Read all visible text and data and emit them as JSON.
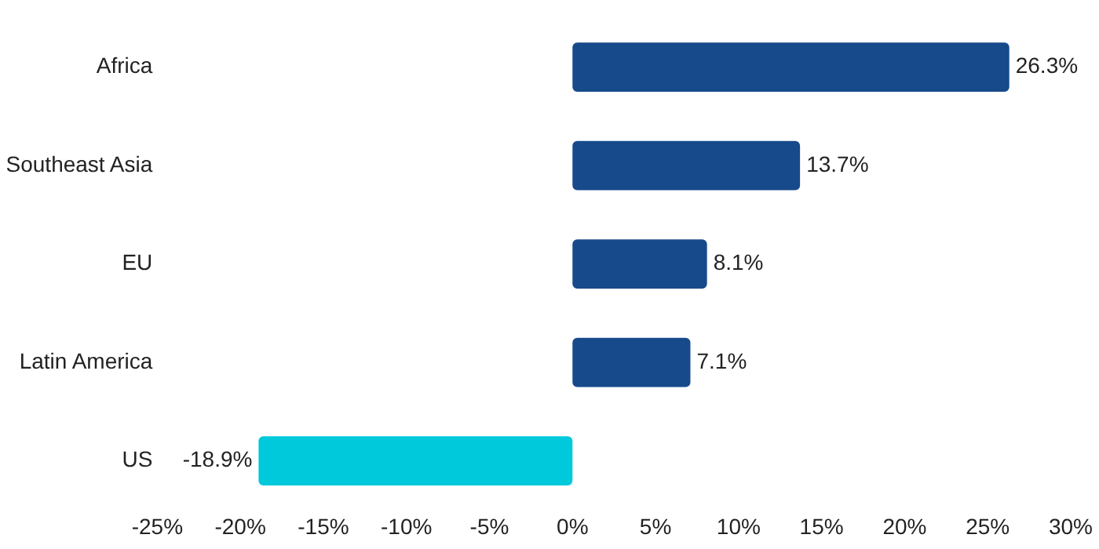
{
  "chart_data": {
    "type": "bar",
    "orientation": "horizontal",
    "categories": [
      "Africa",
      "Southeast Asia",
      "EU",
      "Latin America",
      "US"
    ],
    "values": [
      26.3,
      13.7,
      8.1,
      7.1,
      -18.9
    ],
    "colors": [
      "#174a8b",
      "#174a8b",
      "#174a8b",
      "#174a8b",
      "#00c9dc"
    ],
    "value_labels": [
      "26.3%",
      "13.7%",
      "8.1%",
      "7.1%",
      "-18.9%"
    ],
    "xlim": [
      -25,
      30
    ],
    "xticks": [
      {
        "value": -25,
        "label": "-25%"
      },
      {
        "value": -20,
        "label": "-20%"
      },
      {
        "value": -15,
        "label": "-15%"
      },
      {
        "value": -10,
        "label": "-10%"
      },
      {
        "value": -5,
        "label": "-5%"
      },
      {
        "value": 0,
        "label": "0%"
      },
      {
        "value": 5,
        "label": "5%"
      },
      {
        "value": 10,
        "label": "10%"
      },
      {
        "value": 15,
        "label": "15%"
      },
      {
        "value": 20,
        "label": "20%"
      },
      {
        "value": 25,
        "label": "25%"
      },
      {
        "value": 30,
        "label": "30%"
      }
    ],
    "grid": false,
    "legend": false
  }
}
